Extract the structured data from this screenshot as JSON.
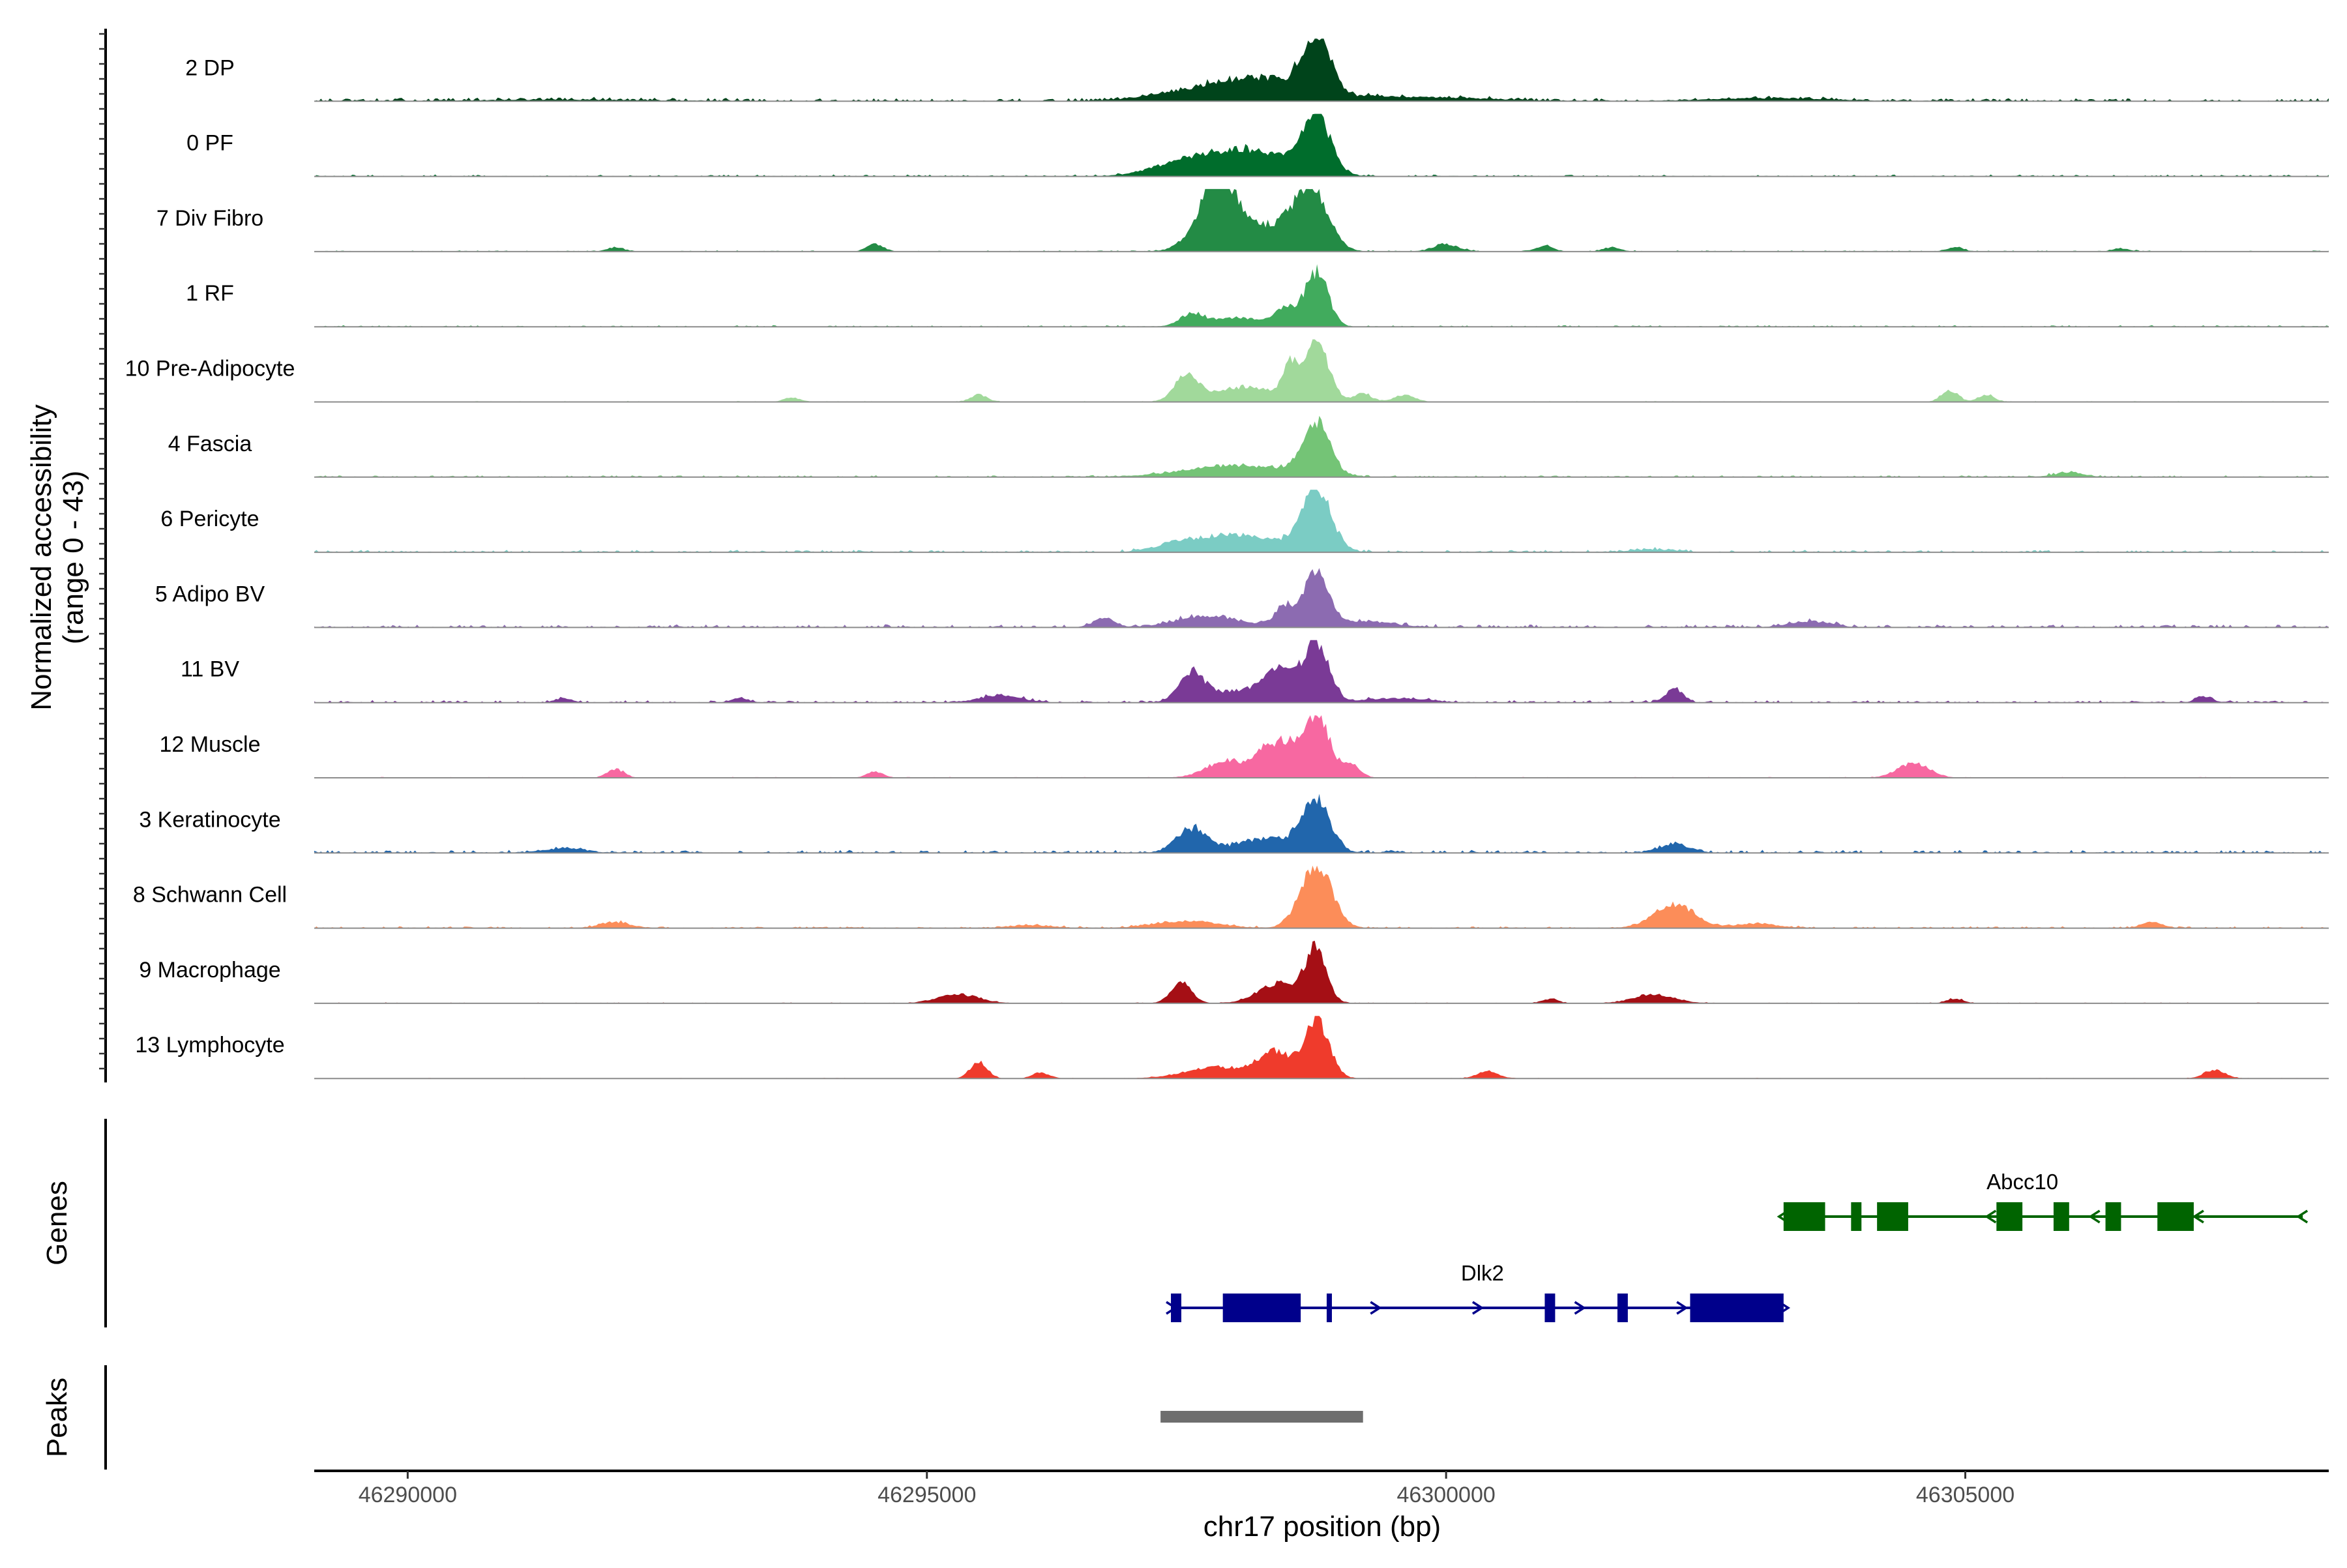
{
  "chart_data": {
    "type": "area",
    "y_axis": {
      "label_line1": "Normalized accessibility",
      "label_line2": "(range 0 - 43)",
      "ylim": [
        0,
        43
      ]
    },
    "x_axis": {
      "label": "chr17 position (bp)",
      "xlim": [
        46289100,
        46308500
      ],
      "ticks": [
        46290000,
        46295000,
        46300000,
        46305000
      ],
      "tick_labels": [
        "46290000",
        "46295000",
        "46300000",
        "46305000"
      ]
    },
    "tracks": [
      {
        "name": "2 DP",
        "color": "#00441b",
        "peaks": [
          [
            46298750,
            40,
            130
          ],
          [
            46297850,
            10,
            500
          ],
          [
            46298300,
            8,
            350
          ],
          [
            46299500,
            3,
            800
          ],
          [
            46303100,
            2,
            600
          ],
          [
            46291500,
            1,
            900
          ]
        ],
        "noise": 1.0
      },
      {
        "name": "0 PF",
        "color": "#006d2c",
        "peaks": [
          [
            46298750,
            40,
            130
          ],
          [
            46297850,
            12,
            400
          ],
          [
            46298300,
            10,
            350
          ],
          [
            46297400,
            4,
            300
          ]
        ],
        "noise": 0.6
      },
      {
        "name": "7 Div Fibro",
        "color": "#238b45",
        "peaks": [
          [
            46297800,
            40,
            180
          ],
          [
            46298700,
            40,
            160
          ],
          [
            46298000,
            12,
            300
          ],
          [
            46298400,
            10,
            250
          ],
          [
            46300000,
            5,
            120
          ],
          [
            46300950,
            4,
            80
          ],
          [
            46294500,
            5,
            80
          ],
          [
            46292000,
            3,
            80
          ],
          [
            46304900,
            3,
            80
          ],
          [
            46301600,
            3,
            80
          ],
          [
            46306500,
            2,
            80
          ]
        ],
        "noise": 0.4
      },
      {
        "name": "1 RF",
        "color": "#41ab5d",
        "peaks": [
          [
            46298750,
            38,
            110
          ],
          [
            46298450,
            12,
            90
          ],
          [
            46297550,
            8,
            120
          ],
          [
            46298000,
            6,
            250
          ]
        ],
        "noise": 0.5
      },
      {
        "name": "10 Pre-Adipocyte",
        "color": "#a1d99b",
        "peaks": [
          [
            46298750,
            40,
            120
          ],
          [
            46298500,
            20,
            80
          ],
          [
            46297500,
            18,
            110
          ],
          [
            46298050,
            10,
            300
          ],
          [
            46299200,
            6,
            80
          ],
          [
            46299600,
            5,
            100
          ],
          [
            46295500,
            5,
            80
          ],
          [
            46293700,
            3,
            80
          ],
          [
            46304850,
            8,
            80
          ],
          [
            46305200,
            5,
            80
          ]
        ],
        "noise": 0.3
      },
      {
        "name": "4 Fascia",
        "color": "#74c476",
        "peaks": [
          [
            46298750,
            35,
            130
          ],
          [
            46298000,
            8,
            500
          ],
          [
            46306000,
            3,
            150
          ]
        ],
        "noise": 0.6
      },
      {
        "name": "6 Pericyte",
        "color": "#7bccc4",
        "peaks": [
          [
            46298750,
            42,
            140
          ],
          [
            46298000,
            12,
            400
          ],
          [
            46297400,
            4,
            200
          ],
          [
            46302000,
            2,
            200
          ]
        ],
        "noise": 0.8
      },
      {
        "name": "5 Adipo BV",
        "color": "#8c6bb1",
        "peaks": [
          [
            46298750,
            38,
            110
          ],
          [
            46298450,
            14,
            100
          ],
          [
            46297700,
            8,
            300
          ],
          [
            46296700,
            6,
            100
          ],
          [
            46299200,
            4,
            300
          ],
          [
            46303500,
            4,
            200
          ]
        ],
        "noise": 1.0
      },
      {
        "name": "11 BV",
        "color": "#7a3a96",
        "peaks": [
          [
            46298750,
            40,
            120
          ],
          [
            46298400,
            20,
            150
          ],
          [
            46297550,
            18,
            120
          ],
          [
            46298000,
            8,
            300
          ],
          [
            46302200,
            10,
            80
          ],
          [
            46295700,
            5,
            200
          ],
          [
            46299500,
            3,
            300
          ],
          [
            46307300,
            4,
            80
          ],
          [
            46291500,
            3,
            80
          ],
          [
            46293200,
            3,
            80
          ]
        ],
        "noise": 0.8
      },
      {
        "name": "12 Muscle",
        "color": "#f768a1",
        "peaks": [
          [
            46298750,
            42,
            130
          ],
          [
            46298300,
            20,
            120
          ],
          [
            46297900,
            12,
            200
          ],
          [
            46298500,
            15,
            100
          ],
          [
            46299100,
            8,
            80
          ],
          [
            46304500,
            10,
            150
          ],
          [
            46292000,
            6,
            80
          ],
          [
            46294500,
            4,
            80
          ]
        ],
        "noise": 0.3
      },
      {
        "name": "3 Keratinocyte",
        "color": "#2166ac",
        "peaks": [
          [
            46298750,
            35,
            130
          ],
          [
            46297550,
            16,
            150
          ],
          [
            46298300,
            10,
            300
          ],
          [
            46302200,
            6,
            150
          ],
          [
            46291500,
            3,
            200
          ]
        ],
        "noise": 1.0
      },
      {
        "name": "8 Schwann Cell",
        "color": "#fc8d59",
        "peaks": [
          [
            46298750,
            43,
            150
          ],
          [
            46302200,
            16,
            200
          ],
          [
            46297500,
            5,
            300
          ],
          [
            46292000,
            4,
            150
          ],
          [
            46306800,
            4,
            100
          ],
          [
            46303000,
            3,
            200
          ],
          [
            46296000,
            2,
            200
          ]
        ],
        "noise": 0.6
      },
      {
        "name": "9 Macrophage",
        "color": "#a50f15",
        "peaks": [
          [
            46298750,
            36,
            100
          ],
          [
            46298400,
            14,
            200
          ],
          [
            46297450,
            14,
            100
          ],
          [
            46295300,
            6,
            200
          ],
          [
            46302000,
            6,
            200
          ],
          [
            46301000,
            3,
            80
          ],
          [
            46304900,
            3,
            80
          ]
        ],
        "noise": 0.3
      },
      {
        "name": "13 Lymphocyte",
        "color": "#ef3b2c",
        "peaks": [
          [
            46298750,
            40,
            120
          ],
          [
            46298350,
            18,
            150
          ],
          [
            46297800,
            8,
            300
          ],
          [
            46295500,
            12,
            80
          ],
          [
            46296100,
            4,
            80
          ],
          [
            46300400,
            5,
            100
          ],
          [
            46307400,
            6,
            100
          ]
        ],
        "noise": 0.2
      }
    ],
    "genes_track": {
      "label": "Genes"
    },
    "genes": [
      {
        "name": "Abcc10",
        "color": "#006400",
        "strand": "-",
        "row": 0,
        "start": 46303250,
        "end": 46308250,
        "label_pos": 46305550,
        "exons": [
          [
            46303250,
            46303650
          ],
          [
            46303900,
            46304000
          ],
          [
            46304150,
            46304450
          ],
          [
            46305300,
            46305550
          ],
          [
            46305850,
            46306000
          ],
          [
            46306350,
            46306500
          ],
          [
            46306850,
            46307200
          ]
        ]
      },
      {
        "name": "Dlk2",
        "color": "#00008b",
        "strand": "+",
        "row": 1,
        "start": 46297350,
        "end": 46303250,
        "label_pos": 46300350,
        "exons": [
          [
            46297350,
            46297450
          ],
          [
            46297850,
            46298600
          ],
          [
            46298850,
            46298900
          ],
          [
            46300950,
            46301050
          ],
          [
            46301650,
            46301750
          ],
          [
            46302350,
            46303250
          ]
        ]
      }
    ],
    "peaks_track": {
      "label": "Peaks",
      "color": "#6e6e6e",
      "regions": [
        [
          46297250,
          46299200
        ]
      ]
    }
  }
}
